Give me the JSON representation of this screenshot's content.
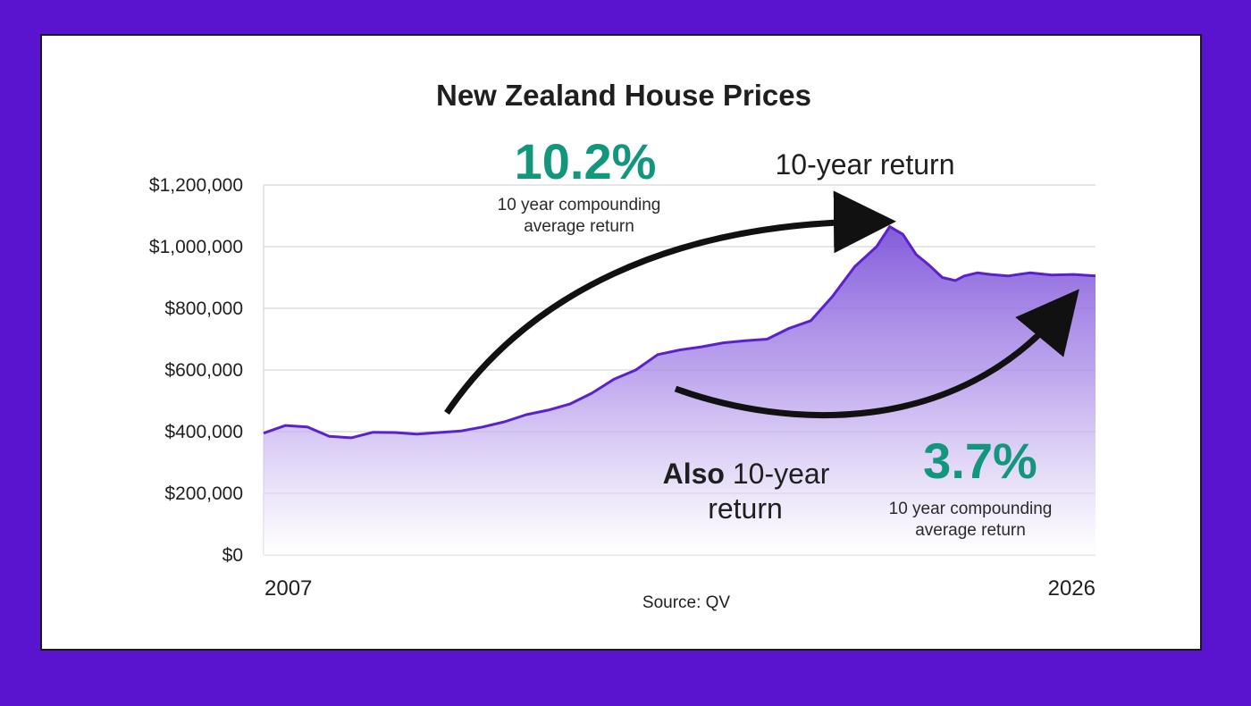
{
  "chart_data": {
    "type": "area",
    "title": "New Zealand House Prices",
    "source": "Source: QV",
    "x_start_label": "2007",
    "x_end_label": "2026",
    "xlim": [
      2007,
      2026
    ],
    "ylim": [
      0,
      1200000
    ],
    "y_ticks": [
      "$0",
      "$200,000",
      "$400,000",
      "$600,000",
      "$800,000",
      "$1,000,000",
      "$1,200,000"
    ],
    "grid": true,
    "x": [
      2007.0,
      2007.5,
      2008.0,
      2008.5,
      2009.0,
      2009.5,
      2010.0,
      2010.5,
      2011.0,
      2011.5,
      2012.0,
      2012.5,
      2013.0,
      2013.5,
      2014.0,
      2014.5,
      2015.0,
      2015.5,
      2016.0,
      2016.5,
      2017.0,
      2017.5,
      2018.0,
      2018.5,
      2019.0,
      2019.5,
      2020.0,
      2020.5,
      2021.0,
      2021.3,
      2021.6,
      2021.9,
      2022.2,
      2022.5,
      2022.8,
      2023.0,
      2023.3,
      2023.6,
      2024.0,
      2024.5,
      2025.0,
      2025.5,
      2026.0
    ],
    "values": [
      395000,
      420000,
      415000,
      385000,
      380000,
      398000,
      397000,
      392000,
      397000,
      402000,
      415000,
      432000,
      455000,
      470000,
      490000,
      525000,
      570000,
      600000,
      650000,
      665000,
      675000,
      688000,
      695000,
      700000,
      735000,
      760000,
      840000,
      935000,
      1000000,
      1065000,
      1040000,
      975000,
      940000,
      900000,
      890000,
      905000,
      915000,
      910000,
      905000,
      915000,
      908000,
      910000,
      905000
    ],
    "series": [
      {
        "name": "",
        "color": "#5b22cc",
        "fill": "#8f6ae0"
      }
    ],
    "annotations": [
      {
        "value": "10.2%",
        "subtitle_line1": "10 year compounding",
        "subtitle_line2": "average return",
        "color": "#12977e"
      },
      {
        "text": "10-year return"
      },
      {
        "bold": "Also",
        "text": "10-year",
        "text2": "return"
      },
      {
        "value": "3.7%",
        "subtitle_line1": "10 year compounding",
        "subtitle_line2": "average return",
        "color": "#12977e"
      }
    ]
  }
}
